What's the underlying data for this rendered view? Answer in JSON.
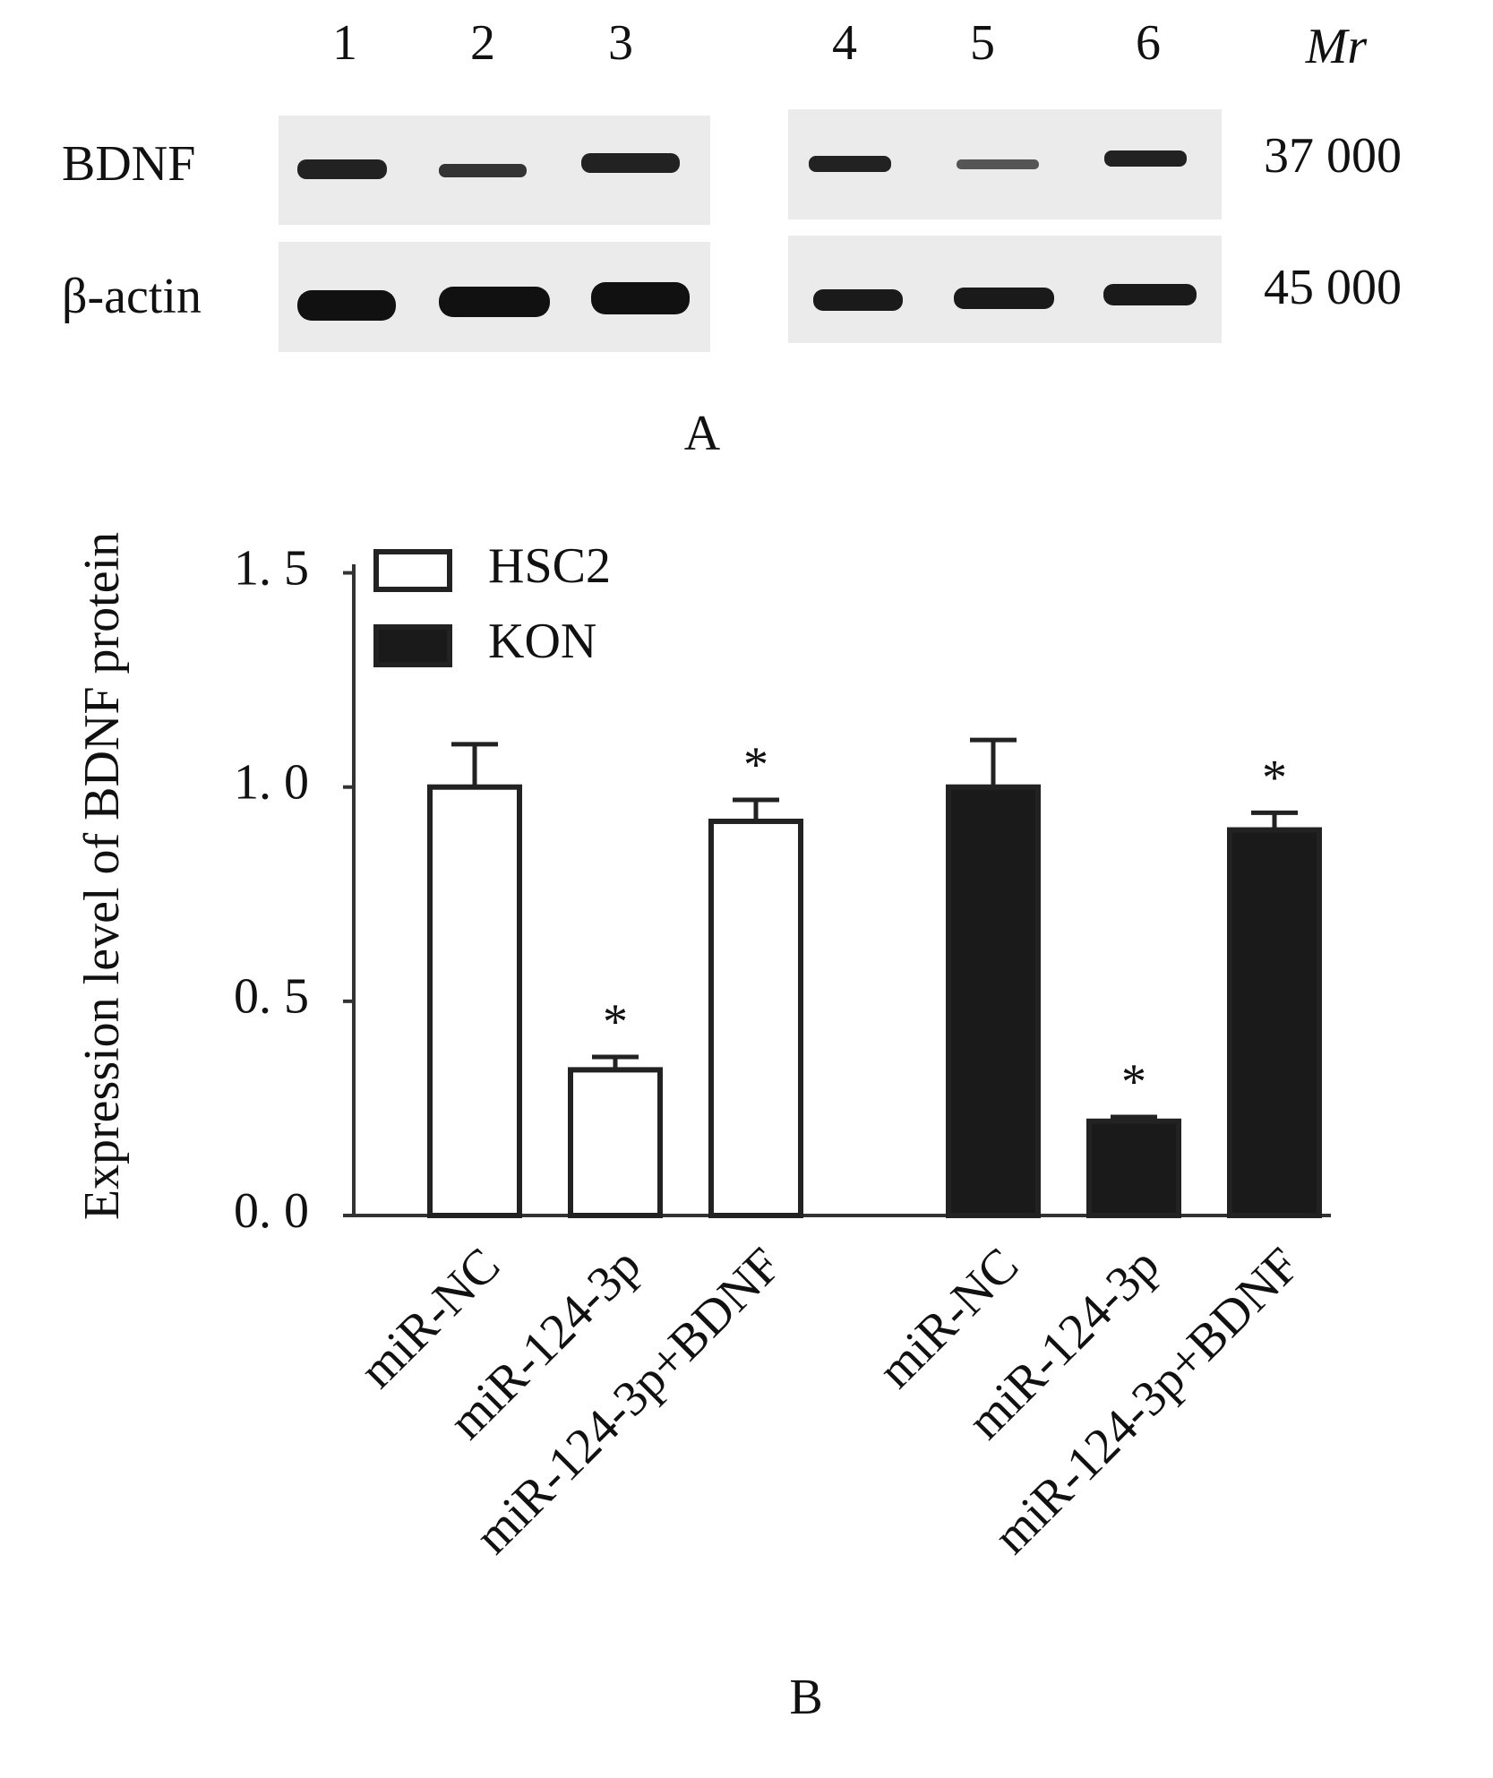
{
  "blot": {
    "lanes": [
      "1",
      "2",
      "3",
      "4",
      "5",
      "6"
    ],
    "mr_label": "Mr",
    "rows": [
      {
        "label": "BDNF",
        "mr": "37 000"
      },
      {
        "label": "β-actin",
        "mr": "45 000"
      }
    ],
    "panel_label": "A"
  },
  "chart_data": {
    "type": "bar",
    "ylabel": "Expression level of BDNF protein",
    "panel_label": "B",
    "categories": [
      "miR-NC",
      "miR-124-3p",
      "miR-124-3p+BDNF"
    ],
    "series": [
      {
        "name": "HSC2",
        "color": "#ffffff",
        "values": [
          1.0,
          0.34,
          0.92
        ],
        "errors": [
          0.1,
          0.03,
          0.05
        ],
        "markers": [
          null,
          "*",
          "*"
        ]
      },
      {
        "name": "KON",
        "color": "#1a1a1a",
        "values": [
          1.0,
          0.22,
          0.9
        ],
        "errors": [
          0.11,
          0.01,
          0.04
        ],
        "markers": [
          null,
          "*",
          "*"
        ]
      }
    ],
    "ylim": [
      0,
      1.52
    ],
    "yticks": [
      {
        "value": 0,
        "label": "0. 0"
      },
      {
        "value": 0.5,
        "label": "0. 5"
      },
      {
        "value": 1.0,
        "label": "1. 0"
      },
      {
        "value": 1.5,
        "label": "1. 5"
      }
    ],
    "legend": "upper left"
  }
}
